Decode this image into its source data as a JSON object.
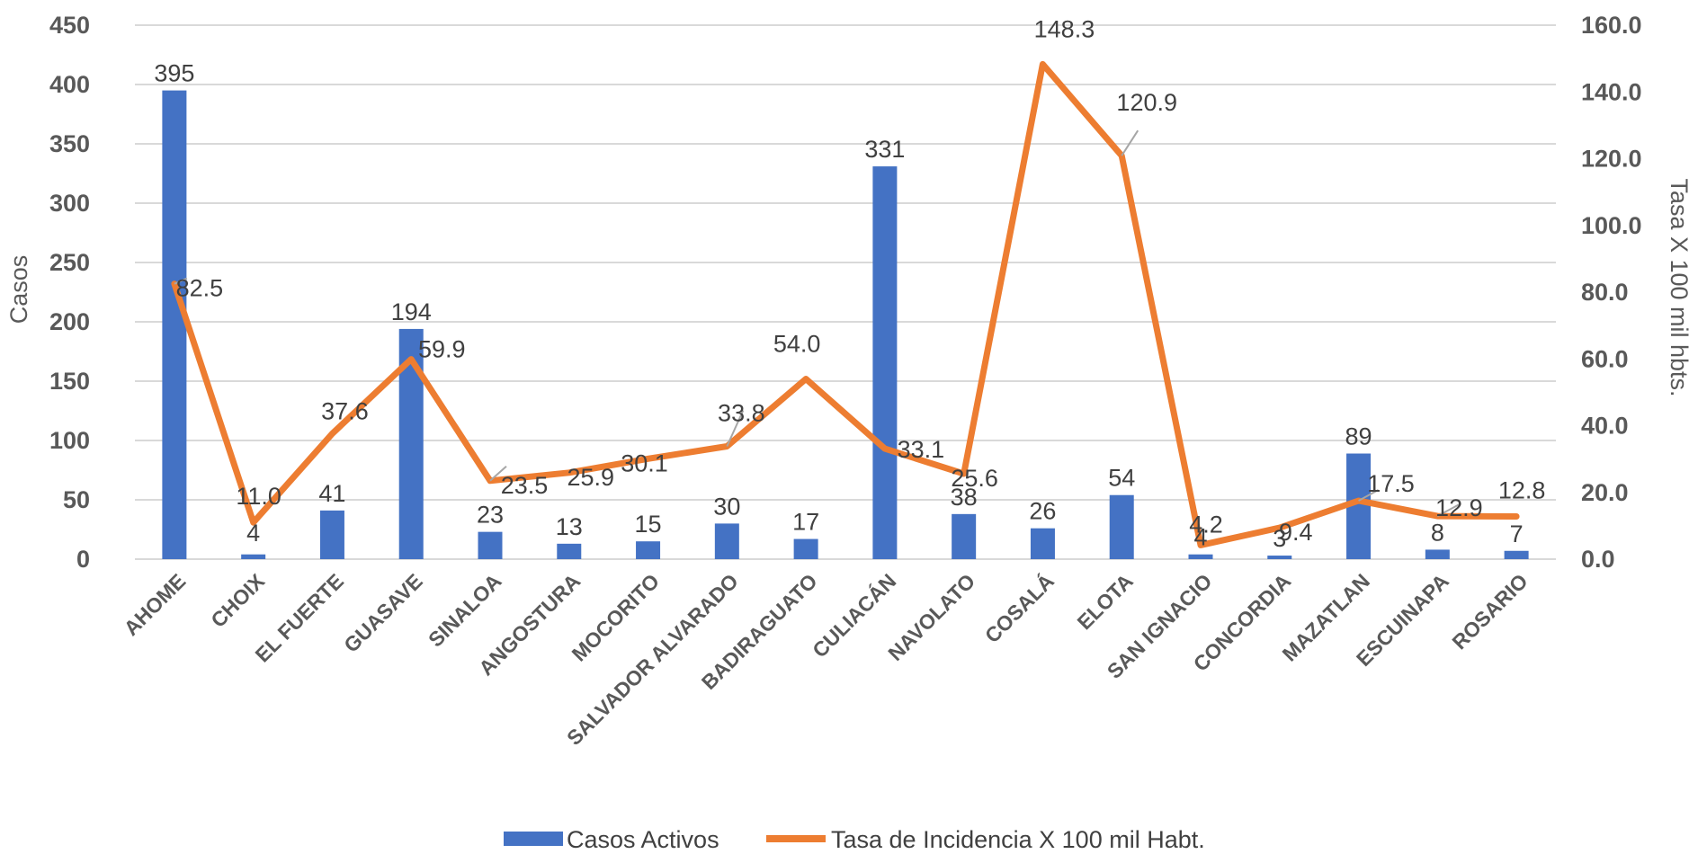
{
  "chart_data": {
    "type": "bar",
    "categories": [
      "AHOME",
      "CHOIX",
      "EL FUERTE",
      "GUASAVE",
      "SINALOA",
      "ANGOSTURA",
      "MOCORITO",
      "SALVADOR ALVARADO",
      "BADIRAGUATO",
      "CULIACÁN",
      "NAVOLATO",
      "COSALÁ",
      "ELOTA",
      "SAN IGNACIO",
      "CONCORDIA",
      "MAZATLAN",
      "ESCUINAPA",
      "ROSARIO"
    ],
    "series": [
      {
        "name": "Casos Activos",
        "type": "bar",
        "axis": "left",
        "color": "#4472C4",
        "values": [
          395,
          4,
          41,
          194,
          23,
          13,
          15,
          30,
          17,
          331,
          38,
          26,
          54,
          4,
          3,
          89,
          8,
          7
        ],
        "labels": [
          "395",
          "4",
          "41",
          "194",
          "23",
          "13",
          "15",
          "30",
          "17",
          "331",
          "38",
          "26",
          "54",
          "4",
          "3",
          "89",
          "8",
          "7"
        ]
      },
      {
        "name": "Tasa de Incidencia X 100 mil Habt.",
        "type": "line",
        "axis": "right",
        "color": "#ED7D31",
        "values": [
          82.5,
          11.0,
          37.6,
          59.9,
          23.5,
          25.9,
          30.1,
          33.8,
          54.0,
          33.1,
          25.6,
          148.3,
          120.9,
          4.2,
          9.4,
          17.5,
          12.9,
          12.8
        ],
        "labels": [
          "82.5",
          "11.0",
          "37.6",
          "59.9",
          "23.5",
          "25.9",
          "30.1",
          "33.8",
          "54.0",
          "33.1",
          "25.6",
          "148.3",
          "120.9",
          "4.2",
          "9.4",
          "17.5",
          "12.9",
          "12.8"
        ]
      }
    ],
    "ylabel": "Casos",
    "y2label": "Tasa X 100 mil hbts.",
    "ylim": [
      0,
      450
    ],
    "y2lim": [
      0,
      160
    ],
    "yticks": [
      "0",
      "50",
      "100",
      "150",
      "200",
      "250",
      "300",
      "350",
      "400",
      "450"
    ],
    "y2ticks": [
      "0.0",
      "20.0",
      "40.0",
      "60.0",
      "80.0",
      "100.0",
      "120.0",
      "140.0",
      "160.0"
    ],
    "grid": true,
    "legend": "bottom"
  }
}
